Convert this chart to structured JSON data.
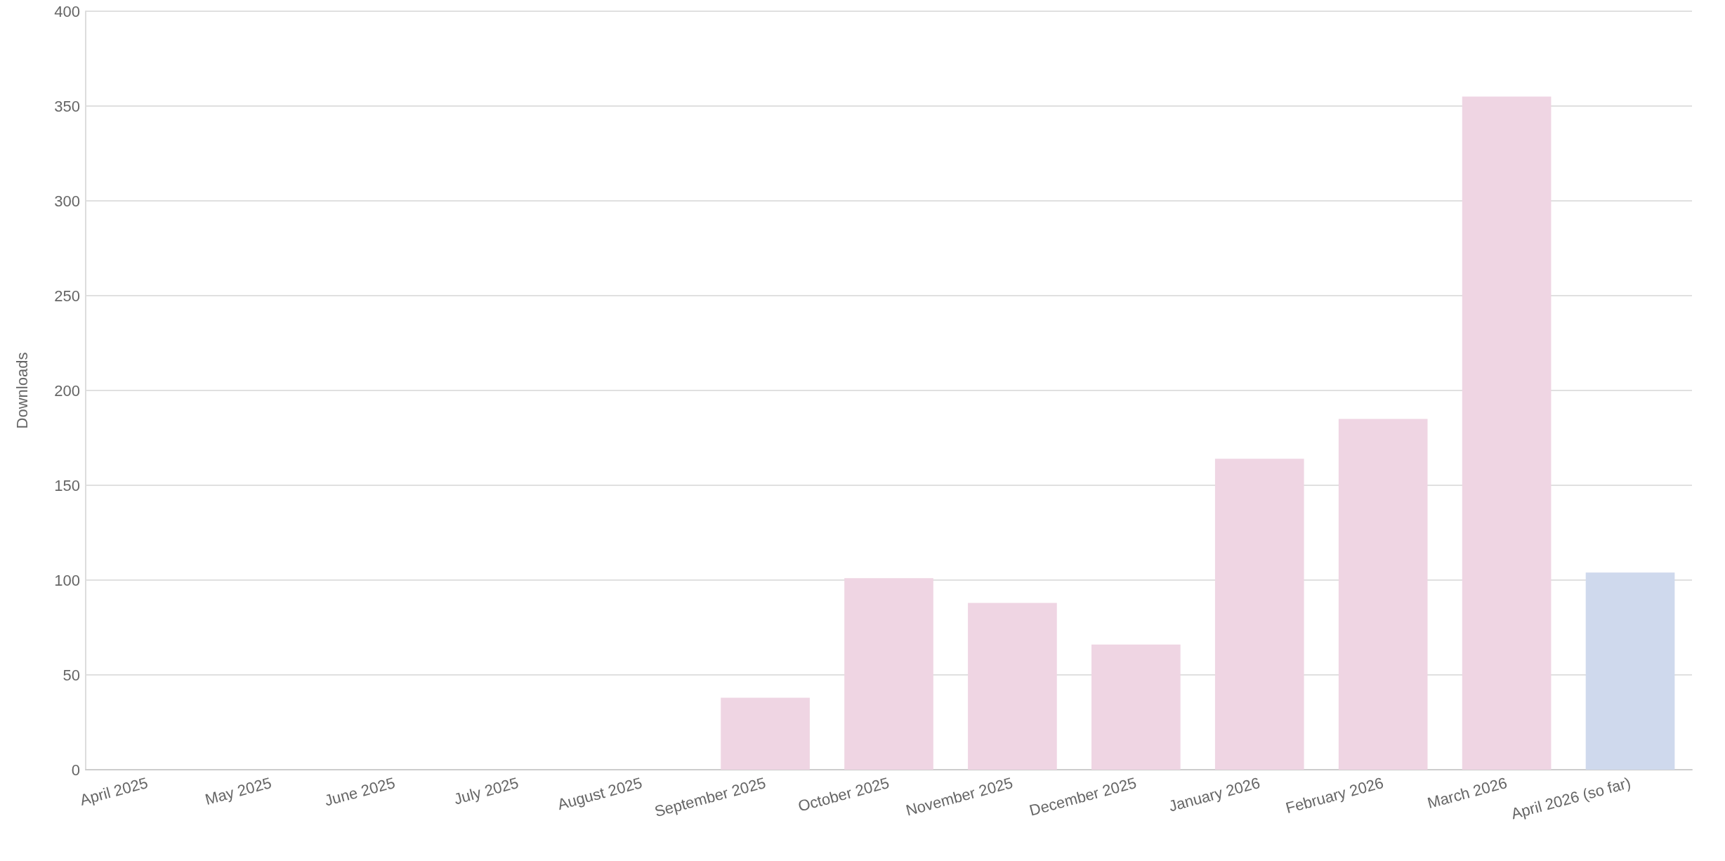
{
  "chart_data": {
    "type": "bar",
    "ylabel": "Downloads",
    "categories": [
      "April 2025",
      "May 2025",
      "June 2025",
      "July 2025",
      "August 2025",
      "September 2025",
      "October 2025",
      "November 2025",
      "December 2025",
      "January 2026",
      "February 2026",
      "March 2026",
      "April 2026 (so far)"
    ],
    "values": [
      0,
      0,
      0,
      0,
      0,
      38,
      101,
      88,
      66,
      164,
      185,
      355,
      104
    ],
    "colors": [
      "#efd5e3",
      "#efd5e3",
      "#efd5e3",
      "#efd5e3",
      "#efd5e3",
      "#efd5e3",
      "#efd5e3",
      "#efd5e3",
      "#efd5e3",
      "#efd5e3",
      "#efd5e3",
      "#efd5e3",
      "#cfd9ed"
    ],
    "ylim": [
      0,
      400
    ],
    "yticks": [
      0,
      50,
      100,
      150,
      200,
      250,
      300,
      350,
      400
    ],
    "grid": "y"
  }
}
